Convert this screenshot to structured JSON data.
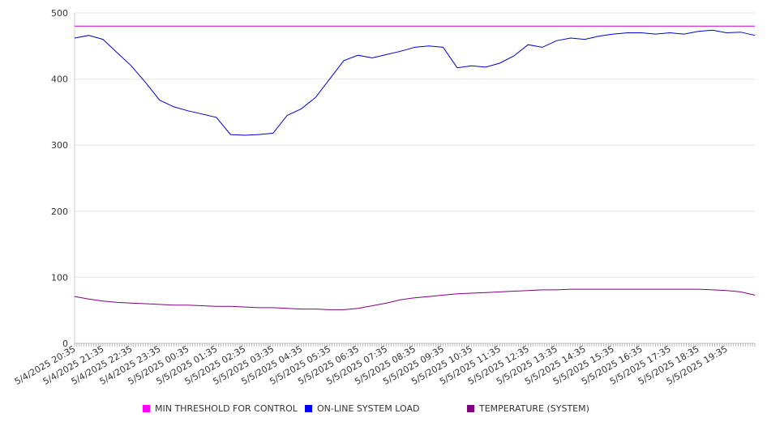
{
  "chart_data": {
    "type": "line",
    "title": "",
    "xlabel": "",
    "ylabel": "",
    "ylim": [
      0,
      500
    ],
    "yticks": [
      0,
      100,
      200,
      300,
      400,
      500
    ],
    "grid": true,
    "legend_position": "bottom",
    "x_tick_labels": [
      "5/4/2025 20:35",
      "5/4/2025 21:35",
      "5/4/2025 22:35",
      "5/4/2025 23:35",
      "5/5/2025 00:35",
      "5/5/2025 01:35",
      "5/5/2025 02:35",
      "5/5/2025 03:35",
      "5/5/2025 04:35",
      "5/5/2025 05:35",
      "5/5/2025 06:35",
      "5/5/2025 07:35",
      "5/5/2025 08:35",
      "5/5/2025 09:35",
      "5/5/2025 10:35",
      "5/5/2025 11:35",
      "5/5/2025 12:35",
      "5/5/2025 13:35",
      "5/5/2025 14:35",
      "5/5/2025 15:35",
      "5/5/2025 16:35",
      "5/5/2025 17:35",
      "5/5/2025 18:35",
      "5/5/2025 19:35"
    ],
    "x": [
      "5/4/2025 20:35",
      "5/4/2025 21:05",
      "5/4/2025 21:35",
      "5/4/2025 22:05",
      "5/4/2025 22:35",
      "5/4/2025 23:05",
      "5/4/2025 23:35",
      "5/5/2025 00:05",
      "5/5/2025 00:35",
      "5/5/2025 01:05",
      "5/5/2025 01:35",
      "5/5/2025 02:05",
      "5/5/2025 02:35",
      "5/5/2025 03:05",
      "5/5/2025 03:35",
      "5/5/2025 04:05",
      "5/5/2025 04:35",
      "5/5/2025 05:05",
      "5/5/2025 05:35",
      "5/5/2025 06:05",
      "5/5/2025 06:35",
      "5/5/2025 07:05",
      "5/5/2025 07:35",
      "5/5/2025 08:05",
      "5/5/2025 08:35",
      "5/5/2025 09:05",
      "5/5/2025 09:35",
      "5/5/2025 10:05",
      "5/5/2025 10:35",
      "5/5/2025 11:05",
      "5/5/2025 11:35",
      "5/5/2025 12:05",
      "5/5/2025 12:35",
      "5/5/2025 13:05",
      "5/5/2025 13:35",
      "5/5/2025 14:05",
      "5/5/2025 14:35",
      "5/5/2025 15:05",
      "5/5/2025 15:35",
      "5/5/2025 16:05",
      "5/5/2025 16:35",
      "5/5/2025 17:05",
      "5/5/2025 17:35",
      "5/5/2025 18:05",
      "5/5/2025 18:35",
      "5/5/2025 19:05",
      "5/5/2025 19:35",
      "5/5/2025 20:05",
      "5/5/2025 20:35"
    ],
    "series": [
      {
        "name": "MIN THRESHOLD FOR CONTROL",
        "color": "#cc00cc",
        "values": [
          480,
          480,
          480,
          480,
          480,
          480,
          480,
          480,
          480,
          480,
          480,
          480,
          480,
          480,
          480,
          480,
          480,
          480,
          480,
          480,
          480,
          480,
          480,
          480,
          480,
          480,
          480,
          480,
          480,
          480,
          480,
          480,
          480,
          480,
          480,
          480,
          480,
          480,
          480,
          480,
          480,
          480,
          480,
          480,
          480,
          480,
          480,
          480,
          480
        ]
      },
      {
        "name": "ON-LINE SYSTEM LOAD",
        "color": "#0000cc",
        "values": [
          462,
          466,
          460,
          440,
          420,
          395,
          368,
          358,
          352,
          347,
          342,
          316,
          315,
          316,
          318,
          345,
          355,
          372,
          400,
          428,
          436,
          432,
          437,
          442,
          448,
          450,
          448,
          417,
          420,
          418,
          424,
          435,
          452,
          448,
          458,
          462,
          460,
          465,
          468,
          470,
          470,
          468,
          470,
          468,
          472,
          474,
          470,
          471,
          466
        ]
      },
      {
        "name": "TEMPERATURE (SYSTEM)",
        "color": "#800080",
        "values": [
          71,
          67,
          64,
          62,
          61,
          60,
          59,
          58,
          58,
          57,
          56,
          56,
          55,
          54,
          54,
          53,
          52,
          52,
          51,
          51,
          53,
          57,
          61,
          66,
          69,
          71,
          73,
          75,
          76,
          77,
          78,
          79,
          80,
          81,
          81,
          82,
          82,
          82,
          82,
          82,
          82,
          82,
          82,
          82,
          82,
          81,
          80,
          78,
          73
        ]
      }
    ]
  }
}
